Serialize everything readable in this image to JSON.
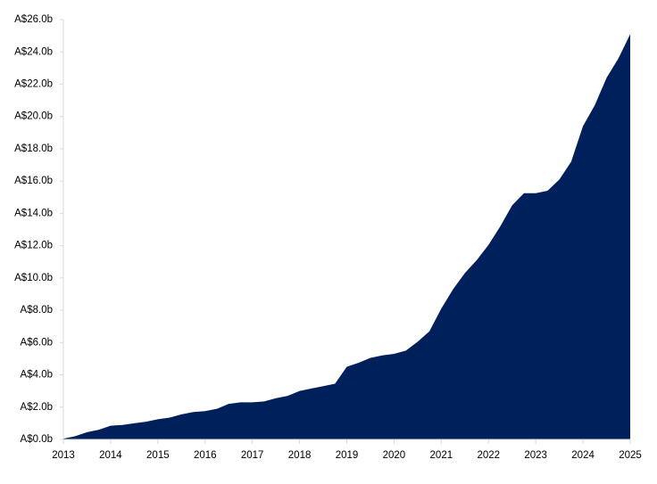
{
  "chart_data": {
    "type": "area",
    "color": "#00205b",
    "x": [
      2013,
      2013.25,
      2013.5,
      2013.75,
      2014,
      2014.25,
      2014.5,
      2014.75,
      2015,
      2015.25,
      2015.5,
      2015.75,
      2016,
      2016.25,
      2016.5,
      2016.75,
      2017,
      2017.25,
      2017.5,
      2017.75,
      2018,
      2018.25,
      2018.5,
      2018.75,
      2019,
      2019.25,
      2019.5,
      2019.75,
      2020,
      2020.25,
      2020.5,
      2020.75,
      2021,
      2021.25,
      2021.5,
      2021.75,
      2022,
      2022.25,
      2022.5,
      2022.75,
      2023,
      2023.25,
      2023.5,
      2023.75,
      2024,
      2024.25,
      2024.5,
      2024.75,
      2025
    ],
    "values": [
      0.05,
      0.2,
      0.45,
      0.6,
      0.85,
      0.9,
      1.0,
      1.1,
      1.25,
      1.35,
      1.55,
      1.7,
      1.75,
      1.9,
      2.2,
      2.3,
      2.3,
      2.35,
      2.55,
      2.7,
      3.0,
      3.15,
      3.3,
      3.45,
      4.5,
      4.75,
      5.05,
      5.2,
      5.3,
      5.5,
      6.05,
      6.7,
      8.1,
      9.3,
      10.3,
      11.1,
      12.05,
      13.2,
      14.5,
      15.25,
      15.25,
      15.4,
      16.1,
      17.2,
      19.4,
      20.7,
      22.4,
      23.6,
      25.1
    ],
    "xlim": [
      2013,
      2025
    ],
    "xticks": [
      2013,
      2014,
      2015,
      2016,
      2017,
      2018,
      2019,
      2020,
      2021,
      2022,
      2023,
      2024,
      2025
    ],
    "ylim": [
      0,
      26
    ],
    "yticks": [
      {
        "value": 0,
        "label": "A$0.0b"
      },
      {
        "value": 2,
        "label": "A$2.0b"
      },
      {
        "value": 4,
        "label": "A$4.0b"
      },
      {
        "value": 6,
        "label": "A$6.0b"
      },
      {
        "value": 8,
        "label": "A$8.0b"
      },
      {
        "value": 10,
        "label": "A$10.0b"
      },
      {
        "value": 12,
        "label": "A$12.0b"
      },
      {
        "value": 14,
        "label": "A$14.0b"
      },
      {
        "value": 16,
        "label": "A$16.0b"
      },
      {
        "value": 18,
        "label": "A$18.0b"
      },
      {
        "value": 20,
        "label": "A$20.0b"
      },
      {
        "value": 22,
        "label": "A$22.0b"
      },
      {
        "value": 24,
        "label": "A$24.0b"
      },
      {
        "value": 26,
        "label": "A$26.0b"
      }
    ]
  }
}
